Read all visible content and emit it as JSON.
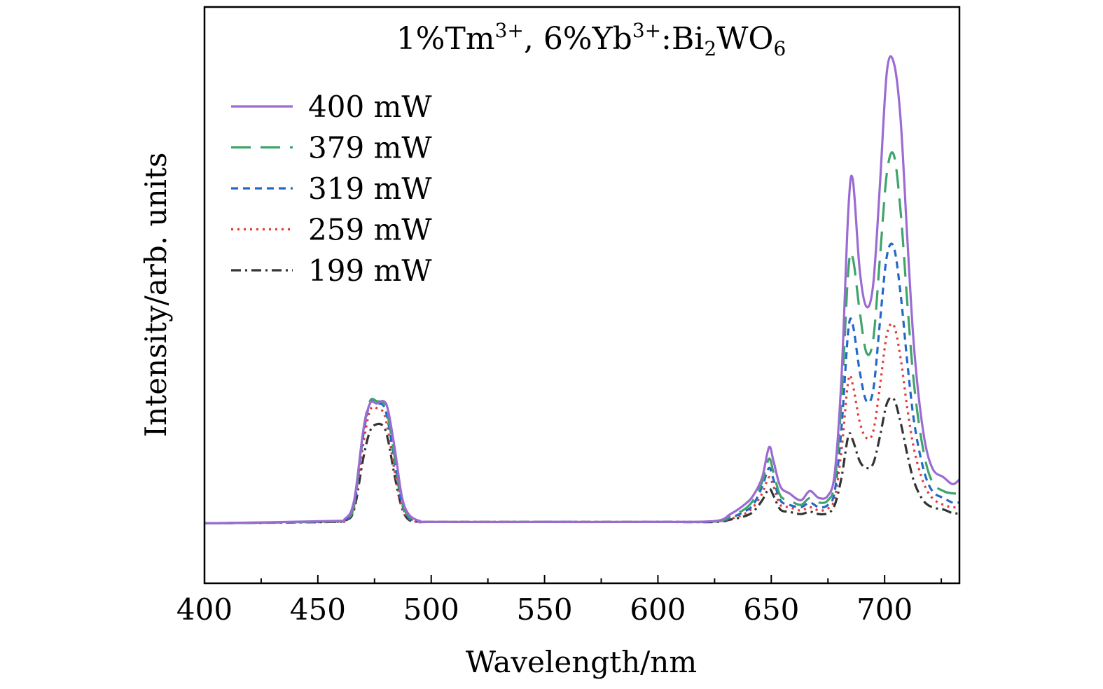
{
  "chart_data": {
    "type": "line",
    "title": {
      "prefix": "1%Tm",
      "tm_sup": "3+",
      "mid": ", 6%Yb",
      "yb_sup": "3+",
      "host_a": ":Bi",
      "host_sub1": "2",
      "host_b": "WO",
      "host_sub2": "6"
    },
    "xlabel": "Wavelength/nm",
    "ylabel": "Intensity/arb. units",
    "xlim": [
      400,
      733
    ],
    "ylim": [
      -0.13,
      1.12
    ],
    "xticks": [
      400,
      450,
      500,
      550,
      600,
      650,
      700
    ],
    "x_minor_step": 25,
    "yticks": [],
    "legend_position": "top-left",
    "series": [
      {
        "name": "400 mW",
        "color": "#9B6BD3",
        "dash": "solid",
        "x": [
          400,
          455,
          462,
          466,
          470,
          473,
          476,
          479,
          481,
          484,
          487,
          490,
          495,
          500,
          550,
          600,
          625,
          632,
          638,
          642,
          646,
          649,
          651,
          654,
          658,
          663,
          667,
          671,
          675,
          678,
          681,
          684,
          686,
          689,
          692,
          695,
          698,
          701,
          704,
          707,
          710,
          713,
          717,
          721,
          726,
          730,
          733
        ],
        "y": [
          0,
          0.005,
          0.01,
          0.05,
          0.2,
          0.26,
          0.26,
          0.265,
          0.245,
          0.16,
          0.06,
          0.02,
          0.005,
          0.003,
          0.003,
          0.003,
          0.005,
          0.02,
          0.04,
          0.06,
          0.1,
          0.165,
          0.135,
          0.08,
          0.065,
          0.05,
          0.07,
          0.055,
          0.06,
          0.11,
          0.32,
          0.68,
          0.745,
          0.55,
          0.47,
          0.52,
          0.74,
          0.98,
          1.0,
          0.88,
          0.62,
          0.38,
          0.2,
          0.12,
          0.1,
          0.085,
          0.095
        ]
      },
      {
        "name": "379 mW",
        "color": "#3FA36B",
        "dash": "28,14",
        "x": [
          400,
          455,
          462,
          466,
          470,
          473,
          476,
          479,
          481,
          484,
          487,
          490,
          495,
          500,
          550,
          600,
          625,
          632,
          638,
          642,
          646,
          649,
          651,
          654,
          658,
          663,
          667,
          671,
          675,
          678,
          681,
          684,
          686,
          689,
          692,
          695,
          698,
          701,
          704,
          707,
          710,
          713,
          717,
          721,
          726,
          730,
          733
        ],
        "y": [
          0,
          0.004,
          0.008,
          0.04,
          0.2,
          0.265,
          0.265,
          0.26,
          0.23,
          0.14,
          0.05,
          0.015,
          0.004,
          0.003,
          0.003,
          0.003,
          0.004,
          0.015,
          0.03,
          0.05,
          0.09,
          0.14,
          0.11,
          0.06,
          0.05,
          0.04,
          0.055,
          0.045,
          0.05,
          0.09,
          0.27,
          0.55,
          0.575,
          0.46,
          0.37,
          0.4,
          0.58,
          0.76,
          0.8,
          0.68,
          0.48,
          0.3,
          0.16,
          0.09,
          0.07,
          0.065,
          0.065
        ]
      },
      {
        "name": "319 mW",
        "color": "#2468C8",
        "dash": "10,7",
        "x": [
          400,
          455,
          462,
          466,
          470,
          473,
          476,
          479,
          481,
          484,
          487,
          490,
          495,
          500,
          550,
          600,
          625,
          632,
          638,
          642,
          646,
          649,
          651,
          654,
          658,
          663,
          667,
          671,
          675,
          678,
          681,
          684,
          686,
          689,
          692,
          695,
          698,
          701,
          704,
          707,
          710,
          713,
          717,
          721,
          726,
          730,
          733
        ],
        "y": [
          0,
          0.004,
          0.008,
          0.04,
          0.19,
          0.26,
          0.26,
          0.255,
          0.22,
          0.13,
          0.045,
          0.012,
          0.004,
          0.003,
          0.003,
          0.003,
          0.004,
          0.012,
          0.025,
          0.04,
          0.08,
          0.12,
          0.095,
          0.05,
          0.04,
          0.035,
          0.045,
          0.035,
          0.04,
          0.07,
          0.21,
          0.42,
          0.43,
          0.33,
          0.265,
          0.29,
          0.44,
          0.58,
          0.6,
          0.5,
          0.35,
          0.22,
          0.12,
          0.07,
          0.055,
          0.045,
          0.045
        ]
      },
      {
        "name": "259 mW",
        "color": "#E03B3B",
        "dash": "3,6",
        "x": [
          400,
          455,
          462,
          466,
          470,
          473,
          476,
          479,
          481,
          484,
          487,
          490,
          495,
          500,
          550,
          600,
          625,
          632,
          638,
          642,
          646,
          649,
          651,
          654,
          658,
          663,
          667,
          671,
          675,
          678,
          681,
          684,
          686,
          689,
          692,
          695,
          698,
          701,
          704,
          707,
          710,
          713,
          717,
          721,
          726,
          730,
          733
        ],
        "y": [
          0,
          0.003,
          0.007,
          0.035,
          0.17,
          0.245,
          0.25,
          0.24,
          0.2,
          0.11,
          0.04,
          0.01,
          0.003,
          0.003,
          0.003,
          0.003,
          0.004,
          0.01,
          0.02,
          0.035,
          0.065,
          0.1,
          0.08,
          0.04,
          0.035,
          0.028,
          0.035,
          0.028,
          0.032,
          0.055,
          0.16,
          0.31,
          0.3,
          0.22,
          0.185,
          0.2,
          0.3,
          0.41,
          0.43,
          0.36,
          0.25,
          0.16,
          0.09,
          0.055,
          0.04,
          0.035,
          0.035
        ]
      },
      {
        "name": "199 mW",
        "color": "#333333",
        "dash": "14,6,3,6",
        "x": [
          400,
          455,
          462,
          466,
          470,
          473,
          476,
          479,
          481,
          484,
          487,
          490,
          495,
          500,
          550,
          600,
          625,
          632,
          638,
          642,
          646,
          649,
          651,
          654,
          658,
          663,
          667,
          671,
          675,
          678,
          681,
          684,
          686,
          689,
          692,
          695,
          698,
          701,
          704,
          707,
          710,
          713,
          717,
          721,
          726,
          730,
          733
        ],
        "y": [
          0,
          0.003,
          0.006,
          0.03,
          0.14,
          0.2,
          0.215,
          0.21,
          0.18,
          0.1,
          0.035,
          0.008,
          0.003,
          0.003,
          0.003,
          0.003,
          0.003,
          0.008,
          0.015,
          0.025,
          0.05,
          0.075,
          0.06,
          0.03,
          0.025,
          0.02,
          0.025,
          0.02,
          0.022,
          0.04,
          0.1,
          0.19,
          0.18,
          0.135,
          0.12,
          0.13,
          0.19,
          0.26,
          0.27,
          0.22,
          0.15,
          0.09,
          0.05,
          0.035,
          0.03,
          0.022,
          0.022
        ]
      }
    ]
  }
}
